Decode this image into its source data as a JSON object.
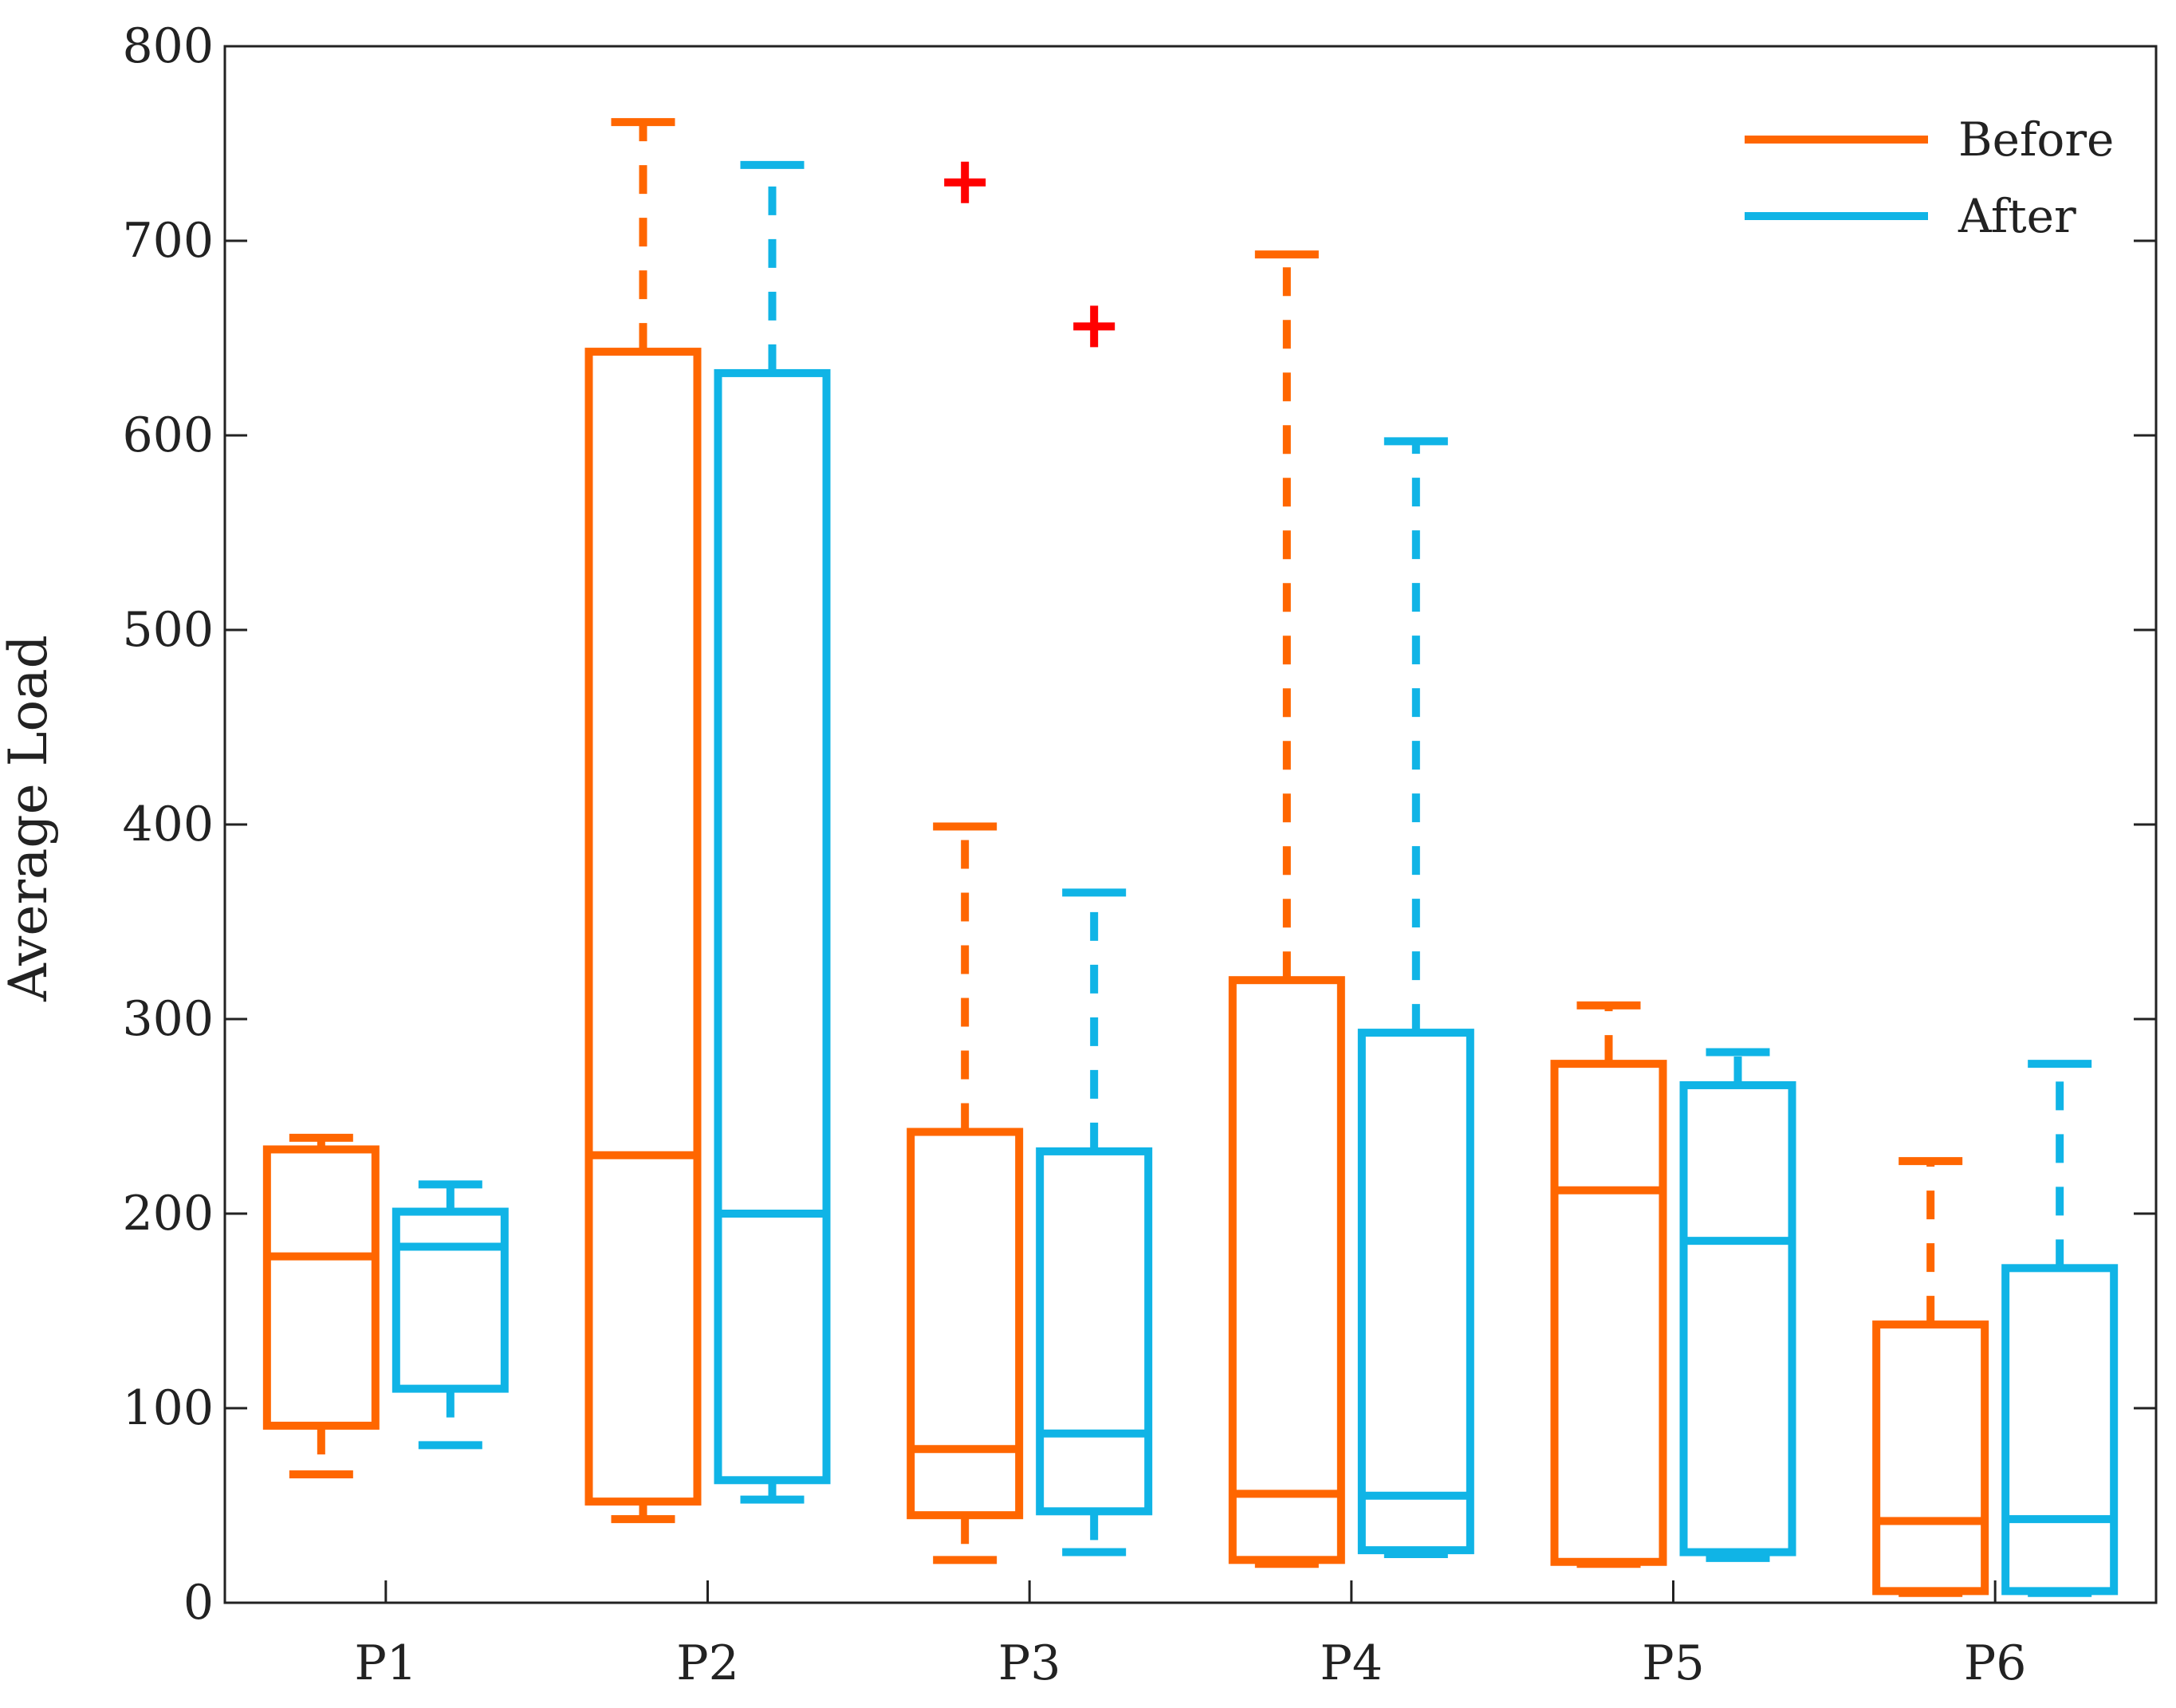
{
  "chart_data": {
    "type": "box",
    "title": "",
    "xlabel": "",
    "ylabel": "Average Load",
    "ylim": [
      0,
      800
    ],
    "yticks": [
      0,
      100,
      200,
      300,
      400,
      500,
      600,
      700,
      800
    ],
    "ytick_labels": [
      "0",
      "100",
      "200",
      "300",
      "400",
      "500",
      "600",
      "700",
      "800"
    ],
    "categories": [
      "P1",
      "P2",
      "P3",
      "P4",
      "P5",
      "P6"
    ],
    "legend_position": "top-right",
    "series": [
      {
        "name": "Before",
        "color": "#ff6600",
        "boxes": [
          {
            "whisker_low": 66,
            "q1": 91,
            "median": 178,
            "q3": 233,
            "whisker_high": 239
          },
          {
            "whisker_low": 43,
            "q1": 52,
            "median": 230,
            "q3": 643,
            "whisker_high": 761
          },
          {
            "whisker_low": 22,
            "q1": 45,
            "median": 79,
            "q3": 242,
            "whisker_high": 399
          },
          {
            "whisker_low": 20,
            "q1": 22,
            "median": 56,
            "q3": 320,
            "whisker_high": 693
          },
          {
            "whisker_low": 20,
            "q1": 21,
            "median": 212,
            "q3": 277,
            "whisker_high": 307
          },
          {
            "whisker_low": 5,
            "q1": 6,
            "median": 42,
            "q3": 143,
            "whisker_high": 227
          }
        ]
      },
      {
        "name": "After",
        "color": "#10b4e6",
        "boxes": [
          {
            "whisker_low": 81,
            "q1": 110,
            "median": 183,
            "q3": 201,
            "whisker_high": 215
          },
          {
            "whisker_low": 53,
            "q1": 63,
            "median": 200,
            "q3": 632,
            "whisker_high": 739
          },
          {
            "whisker_low": 26,
            "q1": 47,
            "median": 87,
            "q3": 232,
            "whisker_high": 365
          },
          {
            "whisker_low": 25,
            "q1": 27,
            "median": 55,
            "q3": 293,
            "whisker_high": 597
          },
          {
            "whisker_low": 23,
            "q1": 26,
            "median": 186,
            "q3": 266,
            "whisker_high": 283
          },
          {
            "whisker_low": 5,
            "q1": 6,
            "median": 43,
            "q3": 172,
            "whisker_high": 277
          }
        ]
      }
    ],
    "outliers": [
      {
        "category": "P3",
        "series": "Before",
        "value": 730
      },
      {
        "category": "P3",
        "series": "After",
        "value": 656
      }
    ],
    "outlier_color": "#ff0000"
  }
}
